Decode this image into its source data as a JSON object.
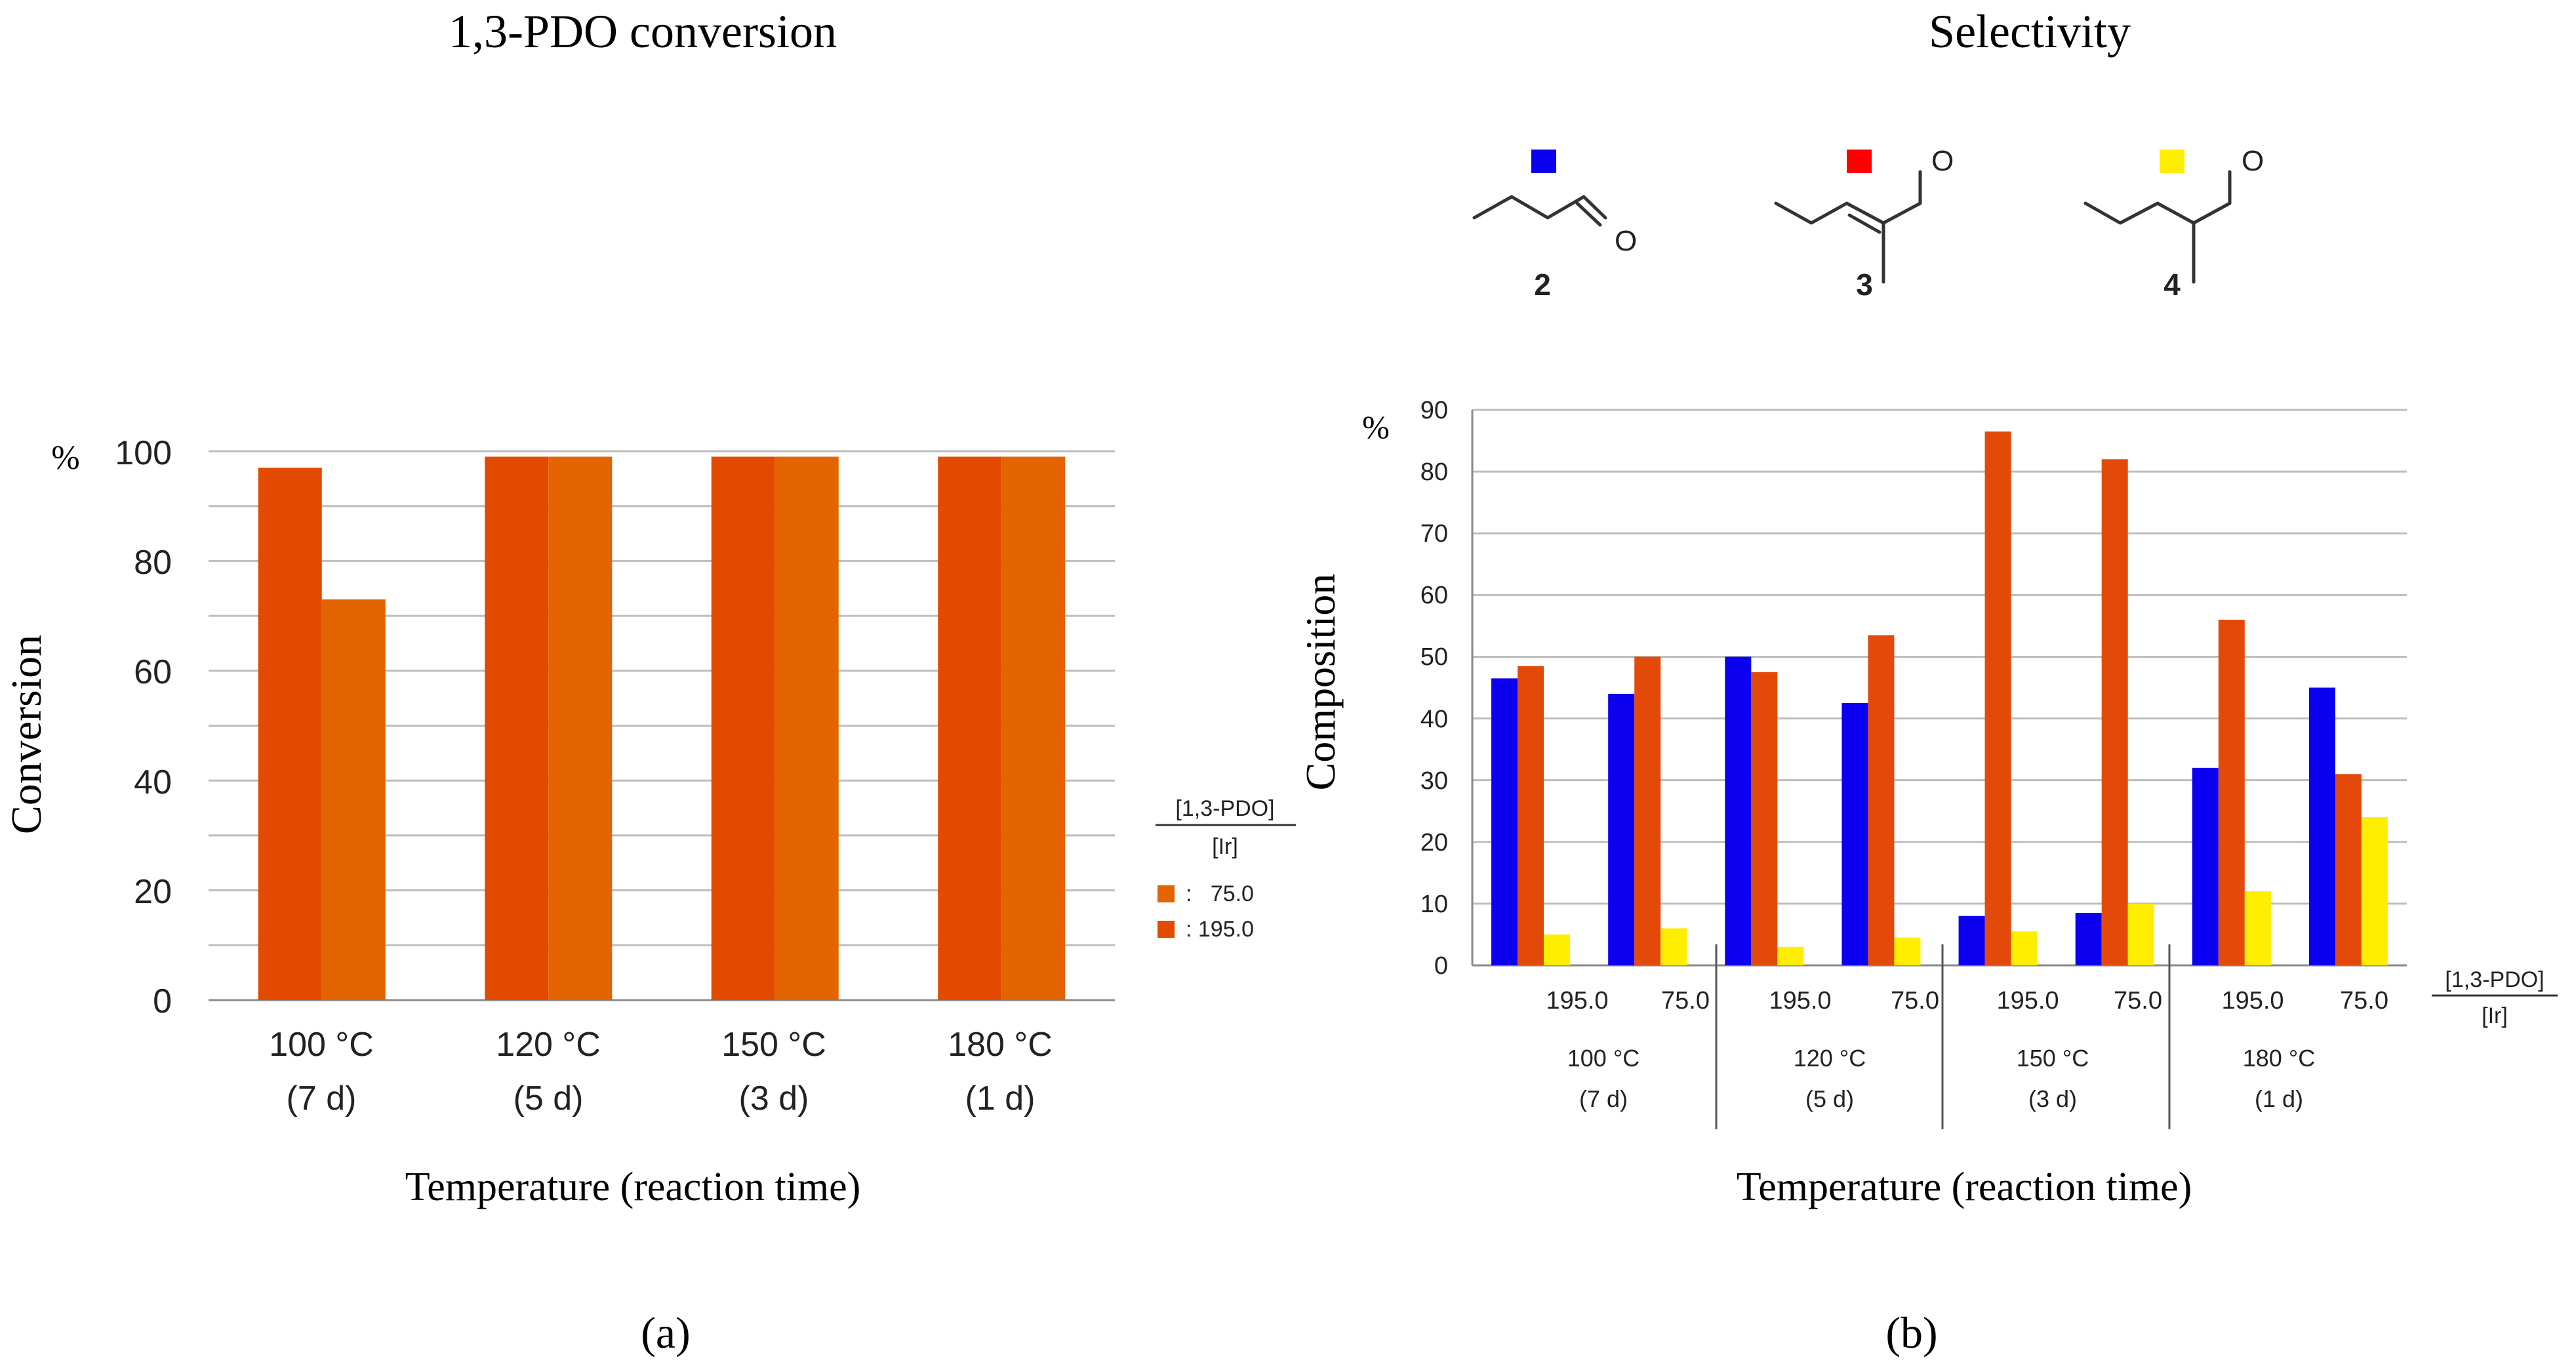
{
  "colors": {
    "bar_195": "#e24a00",
    "bar_75": "#e46400",
    "series_2": "#0b00f0",
    "series_3": "#e34a0a",
    "series_4": "#ffee00"
  },
  "panel_a": {
    "title": "1,3-PDO conversion",
    "caption": "(a)",
    "percent_label": "%",
    "legend": {
      "title_top": "[1,3-PDO]",
      "title_bottom": "[Ir]",
      "items": [
        {
          "label": ":   75.0",
          "color": "#e46400"
        },
        {
          "label": ": 195.0",
          "color": "#e24a00"
        }
      ]
    }
  },
  "panel_b": {
    "title": "Selectivity",
    "caption": "(b)",
    "percent_label": "%",
    "compounds": [
      {
        "number": "2",
        "swatch": "#0b00f0",
        "aldehyde_o": "O"
      },
      {
        "number": "3",
        "swatch": "#ff0000",
        "aldehyde_o": "O"
      },
      {
        "number": "4",
        "swatch": "#ffee00",
        "aldehyde_o": "O"
      }
    ],
    "ratio_label_top": "[1,3-PDO]",
    "ratio_label_bottom": "[Ir]"
  },
  "chart_data": [
    {
      "type": "bar",
      "title": "1,3-PDO conversion",
      "xlabel": "Temperature (reaction time)",
      "ylabel": "Conversion",
      "ylim": [
        0,
        100
      ],
      "yticks": [
        0,
        20,
        40,
        60,
        80,
        100
      ],
      "categories": [
        {
          "temp": "100 °C",
          "time": "(7 d)"
        },
        {
          "temp": "120 °C",
          "time": "(5 d)"
        },
        {
          "temp": "150 °C",
          "time": "(3 d)"
        },
        {
          "temp": "180 °C",
          "time": "(1 d)"
        }
      ],
      "series": [
        {
          "name": "195.0",
          "values": [
            97,
            99,
            99,
            99
          ]
        },
        {
          "name": "75.0",
          "values": [
            73,
            99,
            99,
            99
          ]
        }
      ]
    },
    {
      "type": "bar",
      "title": "Selectivity",
      "xlabel": "Temperature (reaction time)",
      "ylabel": "Composition",
      "ylim": [
        0,
        90
      ],
      "yticks": [
        0,
        10,
        20,
        30,
        40,
        50,
        60,
        70,
        80,
        90
      ],
      "groups": [
        {
          "temp": "100 °C",
          "time": "(7 d)"
        },
        {
          "temp": "120 °C",
          "time": "(5 d)"
        },
        {
          "temp": "150 °C",
          "time": "(3 d)"
        },
        {
          "temp": "180 °C",
          "time": "(1 d)"
        }
      ],
      "categories": [
        "195.0",
        "75.0",
        "195.0",
        "75.0",
        "195.0",
        "75.0",
        "195.0",
        "75.0"
      ],
      "series": [
        {
          "name": "2",
          "values": [
            46.5,
            44.0,
            50.0,
            42.5,
            8.0,
            8.5,
            32.0,
            45.0
          ]
        },
        {
          "name": "3",
          "values": [
            48.5,
            50.0,
            47.5,
            53.5,
            86.5,
            82.0,
            56.0,
            31.0
          ]
        },
        {
          "name": "4",
          "values": [
            5.0,
            6.0,
            3.0,
            4.5,
            5.5,
            10.0,
            12.0,
            24.0
          ]
        }
      ]
    }
  ]
}
